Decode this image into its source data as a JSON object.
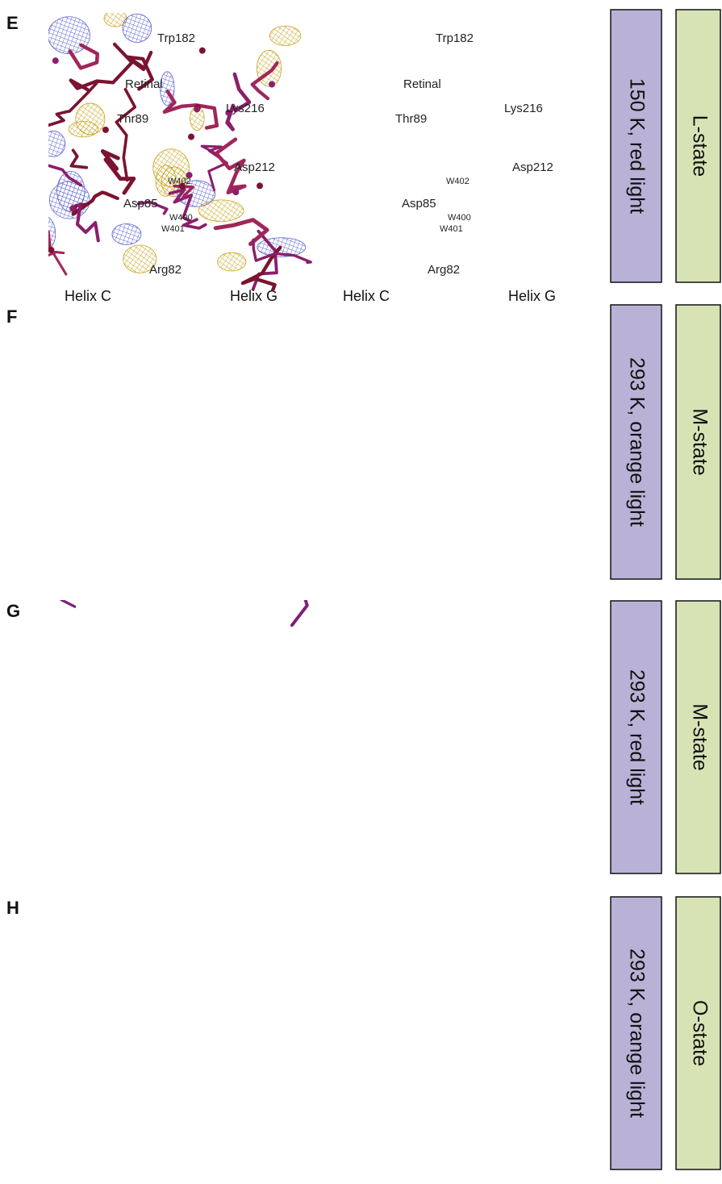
{
  "panels": [
    {
      "letter": "E",
      "condition": "150 K, red light",
      "state": "L-state",
      "labels": [
        "Trp182",
        "Retinal",
        "Lys216",
        "Thr89",
        "Asp212",
        "W402",
        "Asp85",
        "W400",
        "W401",
        "Arg82"
      ],
      "helices": [
        "Helix C",
        "Helix G"
      ]
    },
    {
      "letter": "F",
      "condition": "293 K, orange light",
      "state": "M-state"
    },
    {
      "letter": "G",
      "condition": "293 K, red light",
      "state": "M-state"
    },
    {
      "letter": "H",
      "condition": "293 K, orange light",
      "state": "O-state"
    }
  ]
}
